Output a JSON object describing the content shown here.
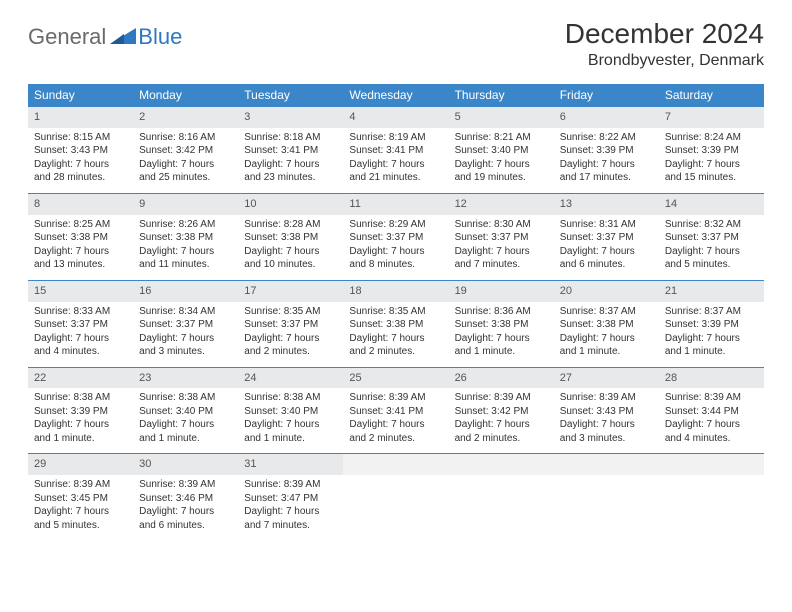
{
  "logo": {
    "general": "General",
    "blue": "Blue"
  },
  "title": "December 2024",
  "location": "Brondbyvester, Denmark",
  "colors": {
    "header_bg": "#3b86c8",
    "header_text": "#ffffff",
    "daynum_bg": "#e8e9ea",
    "row_border": "#3b86c8",
    "logo_blue": "#2f78c2",
    "logo_gray": "#6a6a6a"
  },
  "dow": [
    "Sunday",
    "Monday",
    "Tuesday",
    "Wednesday",
    "Thursday",
    "Friday",
    "Saturday"
  ],
  "weeks": [
    [
      {
        "n": "1",
        "sr": "Sunrise: 8:15 AM",
        "ss": "Sunset: 3:43 PM",
        "d1": "Daylight: 7 hours",
        "d2": "and 28 minutes."
      },
      {
        "n": "2",
        "sr": "Sunrise: 8:16 AM",
        "ss": "Sunset: 3:42 PM",
        "d1": "Daylight: 7 hours",
        "d2": "and 25 minutes."
      },
      {
        "n": "3",
        "sr": "Sunrise: 8:18 AM",
        "ss": "Sunset: 3:41 PM",
        "d1": "Daylight: 7 hours",
        "d2": "and 23 minutes."
      },
      {
        "n": "4",
        "sr": "Sunrise: 8:19 AM",
        "ss": "Sunset: 3:41 PM",
        "d1": "Daylight: 7 hours",
        "d2": "and 21 minutes."
      },
      {
        "n": "5",
        "sr": "Sunrise: 8:21 AM",
        "ss": "Sunset: 3:40 PM",
        "d1": "Daylight: 7 hours",
        "d2": "and 19 minutes."
      },
      {
        "n": "6",
        "sr": "Sunrise: 8:22 AM",
        "ss": "Sunset: 3:39 PM",
        "d1": "Daylight: 7 hours",
        "d2": "and 17 minutes."
      },
      {
        "n": "7",
        "sr": "Sunrise: 8:24 AM",
        "ss": "Sunset: 3:39 PM",
        "d1": "Daylight: 7 hours",
        "d2": "and 15 minutes."
      }
    ],
    [
      {
        "n": "8",
        "sr": "Sunrise: 8:25 AM",
        "ss": "Sunset: 3:38 PM",
        "d1": "Daylight: 7 hours",
        "d2": "and 13 minutes."
      },
      {
        "n": "9",
        "sr": "Sunrise: 8:26 AM",
        "ss": "Sunset: 3:38 PM",
        "d1": "Daylight: 7 hours",
        "d2": "and 11 minutes."
      },
      {
        "n": "10",
        "sr": "Sunrise: 8:28 AM",
        "ss": "Sunset: 3:38 PM",
        "d1": "Daylight: 7 hours",
        "d2": "and 10 minutes."
      },
      {
        "n": "11",
        "sr": "Sunrise: 8:29 AM",
        "ss": "Sunset: 3:37 PM",
        "d1": "Daylight: 7 hours",
        "d2": "and 8 minutes."
      },
      {
        "n": "12",
        "sr": "Sunrise: 8:30 AM",
        "ss": "Sunset: 3:37 PM",
        "d1": "Daylight: 7 hours",
        "d2": "and 7 minutes."
      },
      {
        "n": "13",
        "sr": "Sunrise: 8:31 AM",
        "ss": "Sunset: 3:37 PM",
        "d1": "Daylight: 7 hours",
        "d2": "and 6 minutes."
      },
      {
        "n": "14",
        "sr": "Sunrise: 8:32 AM",
        "ss": "Sunset: 3:37 PM",
        "d1": "Daylight: 7 hours",
        "d2": "and 5 minutes."
      }
    ],
    [
      {
        "n": "15",
        "sr": "Sunrise: 8:33 AM",
        "ss": "Sunset: 3:37 PM",
        "d1": "Daylight: 7 hours",
        "d2": "and 4 minutes."
      },
      {
        "n": "16",
        "sr": "Sunrise: 8:34 AM",
        "ss": "Sunset: 3:37 PM",
        "d1": "Daylight: 7 hours",
        "d2": "and 3 minutes."
      },
      {
        "n": "17",
        "sr": "Sunrise: 8:35 AM",
        "ss": "Sunset: 3:37 PM",
        "d1": "Daylight: 7 hours",
        "d2": "and 2 minutes."
      },
      {
        "n": "18",
        "sr": "Sunrise: 8:35 AM",
        "ss": "Sunset: 3:38 PM",
        "d1": "Daylight: 7 hours",
        "d2": "and 2 minutes."
      },
      {
        "n": "19",
        "sr": "Sunrise: 8:36 AM",
        "ss": "Sunset: 3:38 PM",
        "d1": "Daylight: 7 hours",
        "d2": "and 1 minute."
      },
      {
        "n": "20",
        "sr": "Sunrise: 8:37 AM",
        "ss": "Sunset: 3:38 PM",
        "d1": "Daylight: 7 hours",
        "d2": "and 1 minute."
      },
      {
        "n": "21",
        "sr": "Sunrise: 8:37 AM",
        "ss": "Sunset: 3:39 PM",
        "d1": "Daylight: 7 hours",
        "d2": "and 1 minute."
      }
    ],
    [
      {
        "n": "22",
        "sr": "Sunrise: 8:38 AM",
        "ss": "Sunset: 3:39 PM",
        "d1": "Daylight: 7 hours",
        "d2": "and 1 minute."
      },
      {
        "n": "23",
        "sr": "Sunrise: 8:38 AM",
        "ss": "Sunset: 3:40 PM",
        "d1": "Daylight: 7 hours",
        "d2": "and 1 minute."
      },
      {
        "n": "24",
        "sr": "Sunrise: 8:38 AM",
        "ss": "Sunset: 3:40 PM",
        "d1": "Daylight: 7 hours",
        "d2": "and 1 minute."
      },
      {
        "n": "25",
        "sr": "Sunrise: 8:39 AM",
        "ss": "Sunset: 3:41 PM",
        "d1": "Daylight: 7 hours",
        "d2": "and 2 minutes."
      },
      {
        "n": "26",
        "sr": "Sunrise: 8:39 AM",
        "ss": "Sunset: 3:42 PM",
        "d1": "Daylight: 7 hours",
        "d2": "and 2 minutes."
      },
      {
        "n": "27",
        "sr": "Sunrise: 8:39 AM",
        "ss": "Sunset: 3:43 PM",
        "d1": "Daylight: 7 hours",
        "d2": "and 3 minutes."
      },
      {
        "n": "28",
        "sr": "Sunrise: 8:39 AM",
        "ss": "Sunset: 3:44 PM",
        "d1": "Daylight: 7 hours",
        "d2": "and 4 minutes."
      }
    ],
    [
      {
        "n": "29",
        "sr": "Sunrise: 8:39 AM",
        "ss": "Sunset: 3:45 PM",
        "d1": "Daylight: 7 hours",
        "d2": "and 5 minutes."
      },
      {
        "n": "30",
        "sr": "Sunrise: 8:39 AM",
        "ss": "Sunset: 3:46 PM",
        "d1": "Daylight: 7 hours",
        "d2": "and 6 minutes."
      },
      {
        "n": "31",
        "sr": "Sunrise: 8:39 AM",
        "ss": "Sunset: 3:47 PM",
        "d1": "Daylight: 7 hours",
        "d2": "and 7 minutes."
      },
      {
        "empty": true
      },
      {
        "empty": true
      },
      {
        "empty": true
      },
      {
        "empty": true
      }
    ]
  ]
}
